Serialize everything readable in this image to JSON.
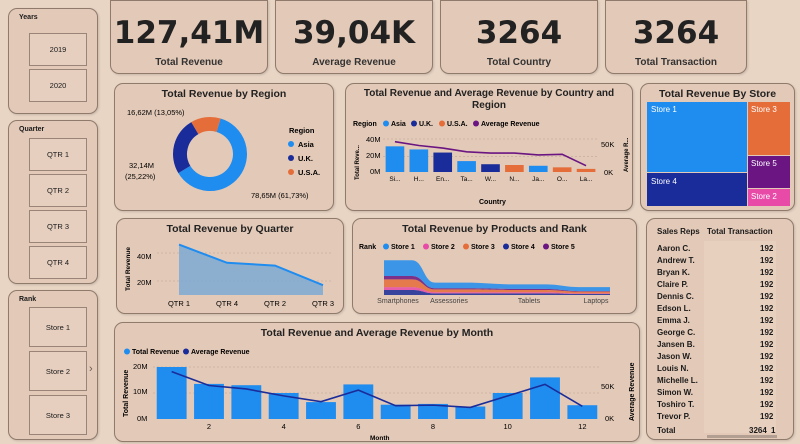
{
  "slicers": {
    "years": {
      "title": "Years",
      "items": [
        "2019",
        "2020"
      ]
    },
    "quarter": {
      "title": "Quarter",
      "items": [
        "QTR 1",
        "QTR 2",
        "QTR 3",
        "QTR 4"
      ]
    },
    "rank": {
      "title": "Rank",
      "items": [
        "Store 1",
        "Store 2",
        "Store 3"
      ]
    }
  },
  "kpis": [
    {
      "value": "127,41M",
      "label": "Total Revenue"
    },
    {
      "value": "39,04K",
      "label": "Average Revenue"
    },
    {
      "value": "3264",
      "label": "Total Country"
    },
    {
      "value": "3264",
      "label": "Total Transaction"
    }
  ],
  "colors": {
    "asia": "#1f8cf0",
    "uk": "#1a2c9a",
    "usa": "#e56d3a",
    "avg": "#6a1582",
    "store5": "#6a1582",
    "store2": "#e84aa8"
  },
  "region_chart": {
    "title": "Total Revenue by Region",
    "legend_title": "Region",
    "labels": {
      "asia": "78,65M (61,73%)",
      "uk": "32,14M\n(25,22%)",
      "usa": "16,62M (13,05%)"
    },
    "uk_label_line1": "32,14M",
    "uk_label_line2": "(25,22%)"
  },
  "country_chart": {
    "title_line1": "Total Revenue and Average Revenue by Country and",
    "title_line2": "Region",
    "legend_title": "Region",
    "legend": [
      "Asia",
      "U.K.",
      "U.S.A.",
      "Average Revenue"
    ],
    "y_left_ticks": [
      "40M",
      "20M",
      "0M"
    ],
    "y_right_ticks": [
      "50K",
      "0K"
    ],
    "y_left_label": "Total Reve...",
    "y_right_label": "Average R...",
    "x_label": "Country",
    "categories": [
      "Si...",
      "H...",
      "En...",
      "Ta...",
      "W...",
      "N...",
      "Ja...",
      "O...",
      "La..."
    ]
  },
  "store_chart": {
    "title": "Total Revenue By Store",
    "stores": [
      "Store 1",
      "Store 3",
      "Store 4",
      "Store 5",
      "Store 2"
    ]
  },
  "quarter_chart": {
    "title": "Total Revenue by Quarter",
    "y_label": "Total Revenue",
    "y_ticks": [
      "40M",
      "20M"
    ],
    "categories": [
      "QTR 1",
      "QTR 4",
      "QTR 2",
      "QTR 3"
    ]
  },
  "product_chart": {
    "title": "Total Revenue by Products and Rank",
    "legend_title": "Rank",
    "legend": [
      "Store 1",
      "Store 2",
      "Store 3",
      "Store 4",
      "Store 5"
    ],
    "categories": [
      "Smartphones",
      "Assessories",
      "Tablets",
      "Laptops"
    ]
  },
  "sales_table": {
    "headers": [
      "Sales Reps",
      "Total Transaction"
    ],
    "rows": [
      [
        "Aaron C.",
        "192"
      ],
      [
        "Andrew T.",
        "192"
      ],
      [
        "Bryan K.",
        "192"
      ],
      [
        "Claire P.",
        "192"
      ],
      [
        "Dennis C.",
        "192"
      ],
      [
        "Edson L.",
        "192"
      ],
      [
        "Emma J.",
        "192"
      ],
      [
        "George C.",
        "192"
      ],
      [
        "Jansen B.",
        "192"
      ],
      [
        "Jason W.",
        "192"
      ],
      [
        "Louis N.",
        "192"
      ],
      [
        "Michelle L.",
        "192"
      ],
      [
        "Simon W.",
        "192"
      ],
      [
        "Toshiro T.",
        "192"
      ],
      [
        "Trevor P.",
        "192"
      ]
    ],
    "total_label": "Total",
    "total_value": "3264",
    "total_extra": "1"
  },
  "month_chart": {
    "title": "Total Revenue and Average Revenue by Month",
    "legend": [
      "Total Revenue",
      "Average Revenue"
    ],
    "y_left_label": "Total Revenue",
    "y_right_label": "Average Revenue",
    "y_left_ticks": [
      "20M",
      "10M",
      "0M"
    ],
    "y_right_ticks": [
      "50K",
      "0K"
    ],
    "x_label": "Month",
    "x_ticks": [
      "2",
      "4",
      "6",
      "8",
      "10",
      "12"
    ]
  },
  "chart_data": [
    {
      "type": "pie",
      "title": "Total Revenue by Region",
      "categories": [
        "Asia",
        "U.K.",
        "U.S.A."
      ],
      "values": [
        78.65,
        32.14,
        16.62
      ],
      "unit": "M"
    },
    {
      "type": "bar",
      "title": "Total Revenue and Average Revenue by Country and Region",
      "categories": [
        "Si...",
        "H...",
        "En...",
        "Ta...",
        "W...",
        "N...",
        "Ja...",
        "O...",
        "La..."
      ],
      "series": [
        {
          "name": "Total Revenue",
          "values": [
            33,
            29,
            25,
            14,
            10,
            9,
            8,
            6,
            4
          ],
          "regions": [
            "Asia",
            "Asia",
            "U.K.",
            "Asia",
            "U.K.",
            "U.S.A.",
            "Asia",
            "U.S.A.",
            "U.S.A."
          ]
        },
        {
          "name": "Average Revenue",
          "values": [
            48,
            42,
            38,
            32,
            30,
            30,
            27,
            28,
            10
          ]
        }
      ],
      "ylim": [
        0,
        45
      ],
      "y2lim": [
        0,
        65
      ]
    },
    {
      "type": "heatmap",
      "title": "Total Revenue By Store",
      "categories": [
        "Store 1",
        "Store 4",
        "Store 3",
        "Store 5",
        "Store 2"
      ],
      "values": [
        54,
        17,
        26,
        14,
        8
      ]
    },
    {
      "type": "area",
      "title": "Total Revenue by Quarter",
      "categories": [
        "QTR 1",
        "QTR 4",
        "QTR 2",
        "QTR 3"
      ],
      "values": [
        46,
        33,
        31,
        17
      ],
      "ylim": [
        10,
        50
      ]
    },
    {
      "type": "area",
      "title": "Total Revenue by Products and Rank",
      "categories": [
        "Smartphones",
        "Assessories",
        "Tablets",
        "Laptops"
      ],
      "series": [
        {
          "name": "Store 1",
          "values": [
            28,
            10,
            8,
            7
          ]
        },
        {
          "name": "Store 2",
          "values": [
            5,
            2,
            2,
            1
          ]
        },
        {
          "name": "Store 3",
          "values": [
            14,
            5,
            4,
            3
          ]
        },
        {
          "name": "Store 4",
          "values": [
            9,
            3,
            3,
            2
          ]
        },
        {
          "name": "Store 5",
          "values": [
            6,
            2,
            2,
            1
          ]
        }
      ]
    },
    {
      "type": "bar",
      "title": "Total Revenue and Average Revenue by Month",
      "x": [
        1,
        2,
        3,
        4,
        5,
        6,
        7,
        8,
        9,
        10,
        11,
        12
      ],
      "series": [
        {
          "name": "Total Revenue",
          "values": [
            20,
            13.5,
            13,
            10,
            6.5,
            13.3,
            5.5,
            5.8,
            4.8,
            10,
            16,
            5.3
          ]
        },
        {
          "name": "Average Revenue",
          "values": [
            82,
            58,
            52,
            40,
            30,
            50,
            23,
            24,
            20,
            40,
            60,
            22
          ]
        }
      ],
      "ylim": [
        0,
        20
      ],
      "y2lim": [
        0,
        90
      ]
    }
  ]
}
